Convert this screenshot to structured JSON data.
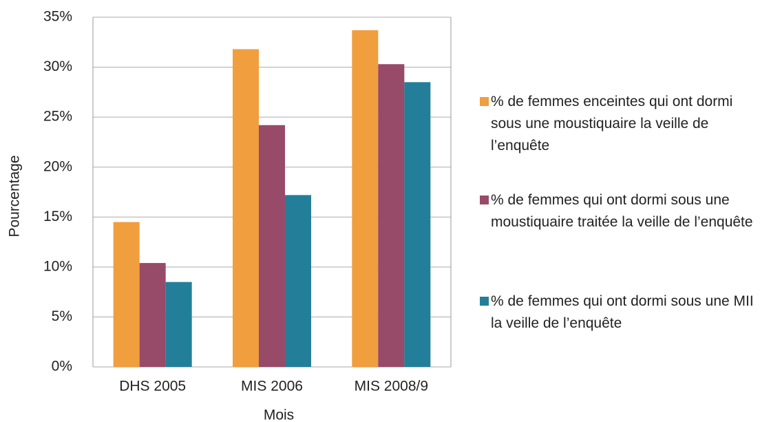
{
  "chart_data": {
    "type": "bar",
    "categories": [
      "DHS 2005",
      "MIS 2006",
      "MIS 2008/9"
    ],
    "series": [
      {
        "name": "% de femmes enceintes qui ont dormi sous une moustiquaire la veille de l’enquête",
        "color": "#f09e3e",
        "values": [
          14.5,
          31.8,
          33.7
        ]
      },
      {
        "name": "% de femmes qui ont dormi sous une moustiquaire traitée la veille de l’enquête",
        "color": "#984a69",
        "values": [
          10.4,
          24.2,
          30.3
        ]
      },
      {
        "name": "% de femmes qui ont dormi sous une MII la veille de l’enquête",
        "color": "#237f99",
        "values": [
          8.5,
          17.2,
          28.5
        ]
      }
    ],
    "xlabel": "Mois",
    "ylabel": "Pourcentage",
    "ylim": [
      0,
      35
    ],
    "yticks": [
      {
        "value": 0,
        "label": "0%"
      },
      {
        "value": 5,
        "label": "5%"
      },
      {
        "value": 10,
        "label": "10%"
      },
      {
        "value": 15,
        "label": "15%"
      },
      {
        "value": 20,
        "label": "20%"
      },
      {
        "value": 25,
        "label": "25%"
      },
      {
        "value": 30,
        "label": "30%"
      },
      {
        "value": 35,
        "label": "35%"
      }
    ],
    "grid": true
  }
}
